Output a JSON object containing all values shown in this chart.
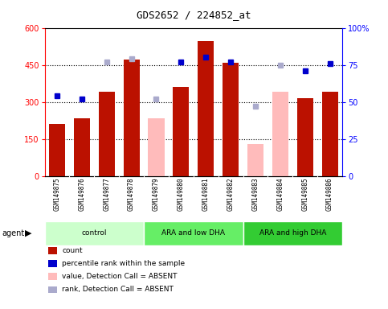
{
  "title": "GDS2652 / 224852_at",
  "samples": [
    "GSM149875",
    "GSM149876",
    "GSM149877",
    "GSM149878",
    "GSM149879",
    "GSM149880",
    "GSM149881",
    "GSM149882",
    "GSM149883",
    "GSM149884",
    "GSM149885",
    "GSM149886"
  ],
  "groups": [
    {
      "label": "control",
      "start": 0,
      "end": 4,
      "color": "#ccffcc"
    },
    {
      "label": "ARA and low DHA",
      "start": 4,
      "end": 8,
      "color": "#66ee66"
    },
    {
      "label": "ARA and high DHA",
      "start": 8,
      "end": 12,
      "color": "#33cc33"
    }
  ],
  "count_values": [
    210,
    235,
    340,
    470,
    null,
    360,
    545,
    460,
    null,
    null,
    315,
    340
  ],
  "count_absent": [
    null,
    null,
    null,
    null,
    235,
    null,
    null,
    null,
    130,
    340,
    null,
    null
  ],
  "percentile_present": [
    54,
    52,
    null,
    null,
    null,
    77,
    80,
    77,
    null,
    null,
    71,
    76
  ],
  "percentile_absent": [
    null,
    null,
    77,
    79,
    52,
    null,
    null,
    null,
    47,
    75,
    null,
    null
  ],
  "left_ylim": [
    0,
    600
  ],
  "left_yticks": [
    0,
    150,
    300,
    450,
    600
  ],
  "right_ylim": [
    0,
    100
  ],
  "right_yticks": [
    0,
    25,
    50,
    75,
    100
  ],
  "right_yticklabels": [
    "0",
    "25",
    "50",
    "75",
    "100%"
  ],
  "bar_color_present": "#bb1100",
  "bar_color_absent": "#ffbbbb",
  "dot_color_present": "#0000cc",
  "dot_color_absent": "#aaaacc",
  "agent_label": "agent",
  "dotted_line_values": [
    150,
    300,
    450
  ],
  "legend_items": [
    {
      "color": "#bb1100",
      "label": "count"
    },
    {
      "color": "#0000cc",
      "label": "percentile rank within the sample"
    },
    {
      "color": "#ffbbbb",
      "label": "value, Detection Call = ABSENT"
    },
    {
      "color": "#aaaacc",
      "label": "rank, Detection Call = ABSENT"
    }
  ]
}
